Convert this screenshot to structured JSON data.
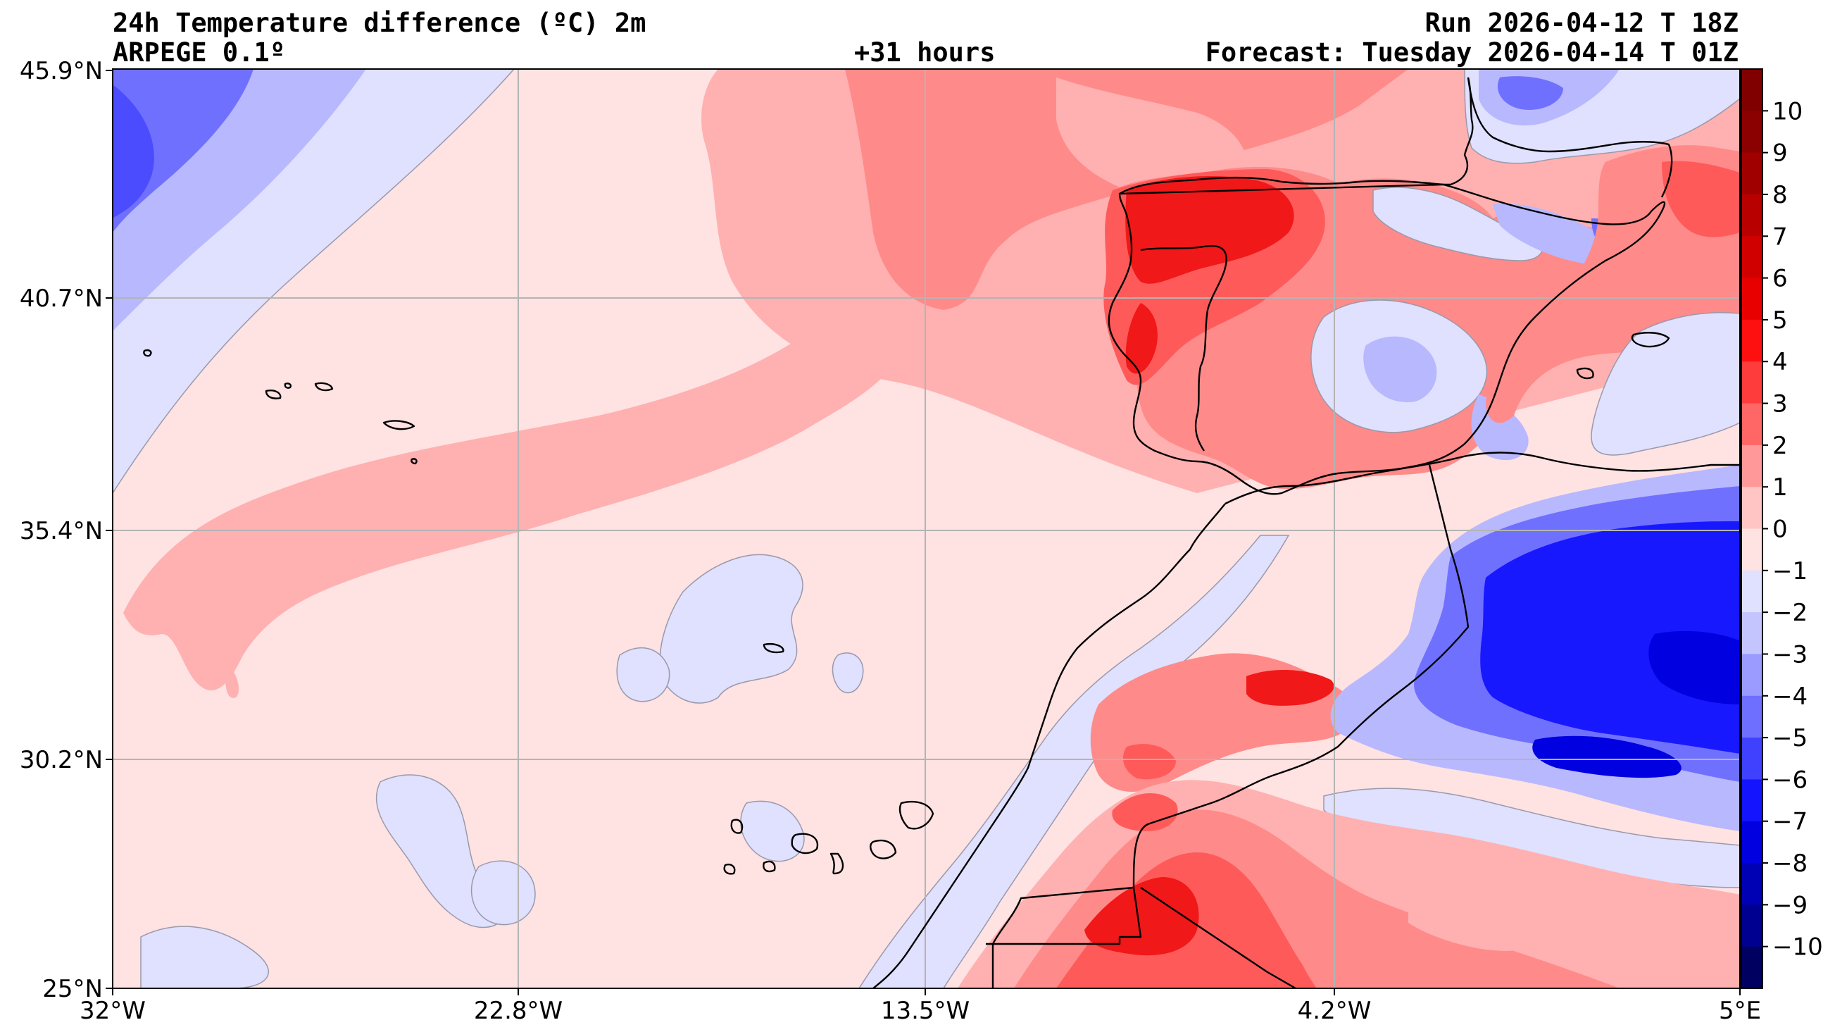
{
  "header": {
    "title": "24h Temperature difference (ºC) 2m",
    "model": "ARPEGE 0.1º",
    "lead": "+31 hours",
    "run": "Run 2026-04-12 T 18Z",
    "forecast": "Forecast: Tuesday 2026-04-14 T 01Z"
  },
  "axes": {
    "lon_labels": [
      "32°W",
      "22.8°W",
      "13.5°W",
      "4.2°W",
      "5°E"
    ],
    "lat_labels": [
      "45.9°N",
      "40.7°N",
      "35.4°N",
      "30.2°N",
      "25°N"
    ]
  },
  "colorbar": {
    "ticks": [
      "10",
      "9",
      "8",
      "7",
      "6",
      "5",
      "4",
      "3",
      "2",
      "1",
      "0",
      "−1",
      "−2",
      "−3",
      "−4",
      "−5",
      "−6",
      "−7",
      "−8",
      "−9",
      "−10"
    ],
    "colors": [
      "#800000",
      "#8b0000",
      "#a00000",
      "#b80000",
      "#d00000",
      "#e80000",
      "#ff1010",
      "#ff3c3c",
      "#ff6666",
      "#ff9999",
      "#ffc4c4",
      "#ffe2e2",
      "#e0e0ff",
      "#c4c4ff",
      "#9a9aff",
      "#6e6eff",
      "#4040ff",
      "#1414ff",
      "#0000e0",
      "#0000b4",
      "#000090",
      "#000060"
    ]
  },
  "legend_colors": {
    "sea_pale_warm": "#ffe2e2",
    "warm_1_2": "#ffb0b0",
    "warm_2_3": "#ff8a8a",
    "warm_3_4": "#ff5a5a",
    "warm_4_6": "#f01818",
    "cool_0_1": "#e0e0ff",
    "cool_1_2": "#b8b8ff",
    "cool_2_4": "#7070ff",
    "cool_4_6": "#1818ff"
  }
}
